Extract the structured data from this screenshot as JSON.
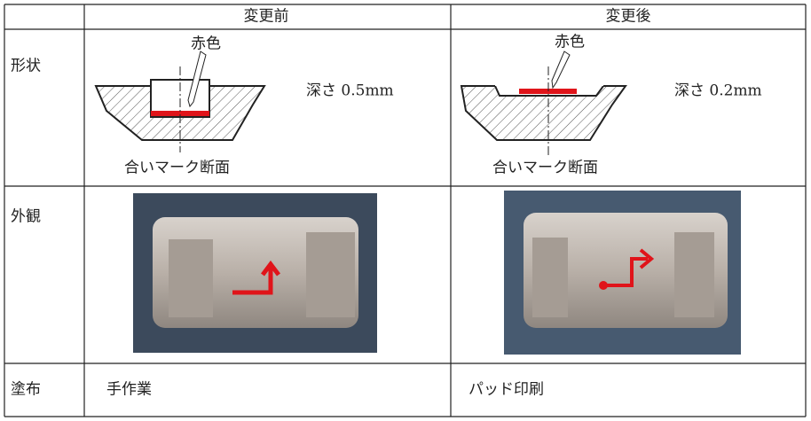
{
  "table": {
    "header": {
      "before": "変更前",
      "after": "変更後"
    },
    "rows": [
      {
        "label": "形状",
        "before": {
          "callout": "赤色",
          "depth": "深さ 0.5mm",
          "caption": "合いマーク断面"
        },
        "after": {
          "callout": "赤色",
          "depth": "深さ 0.2mm",
          "caption": "合いマーク断面"
        }
      },
      {
        "label": "外観"
      },
      {
        "label": "塗布",
        "before": "手作業",
        "after": "パッド印刷"
      }
    ]
  }
}
